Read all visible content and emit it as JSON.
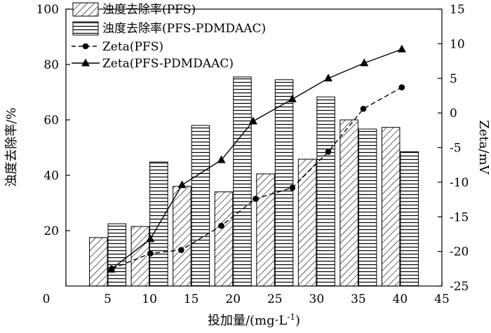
{
  "chart_data": {
    "type": "bar",
    "xlabel": "投加量/(mg·L",
    "xlabel_sup": "-1",
    "xlabel_suffix": ")",
    "ylabel_left": "浊度去除率/%",
    "ylabel_right": "Zeta/mV",
    "xlim": [
      0,
      45
    ],
    "xticks": [
      "0",
      "5",
      "10",
      "15",
      "20",
      "25",
      "30",
      "35",
      "40",
      "45"
    ],
    "ylim_left": [
      0,
      100
    ],
    "yticks_left": [
      "20",
      "40",
      "60",
      "80",
      "100"
    ],
    "ylim_right": [
      -25,
      15
    ],
    "yticks_right": [
      "-25",
      "-20",
      "-15",
      "-10",
      "-5",
      "0",
      "5",
      "10",
      "15"
    ],
    "grid": false,
    "legend_position": "top-left (inside)",
    "bar_series": [
      {
        "name": "浊度去除率(PFS)",
        "pattern": "diagonal-hatch",
        "x": [
          5,
          10,
          15,
          20,
          25,
          30,
          35,
          40
        ],
        "values": [
          17.5,
          21.5,
          36,
          34,
          40.5,
          45.8,
          60,
          57.3
        ]
      },
      {
        "name": "浊度去除率(PFS-PDMDAAC)",
        "pattern": "horizontal-hatch",
        "x": [
          5,
          10,
          15,
          20,
          25,
          30,
          35,
          40
        ],
        "values": [
          22.5,
          44.8,
          58,
          75.5,
          74.5,
          68.3,
          56.7,
          48.5
        ]
      }
    ],
    "line_series": [
      {
        "name": "Zeta(PFS)",
        "marker": "circle",
        "axis": "right",
        "x": [
          5.5,
          10.1,
          13.8,
          18.6,
          22.7,
          27.1,
          31.4,
          35.6,
          40.2
        ],
        "values": [
          -22.5,
          -20.3,
          -19.8,
          -16.3,
          -12.4,
          -10.8,
          -5.6,
          0.6,
          3.7
        ]
      },
      {
        "name": "Zeta(PFS-PDMDAAC)",
        "marker": "triangle",
        "axis": "right",
        "x": [
          5.4,
          10.1,
          13.9,
          18.6,
          22.4,
          27.1,
          31.4,
          35.7,
          40.2
        ],
        "values": [
          -22.6,
          -18.2,
          -10.4,
          -6.8,
          -1.2,
          2.0,
          5.0,
          7.2,
          9.2
        ]
      }
    ]
  }
}
